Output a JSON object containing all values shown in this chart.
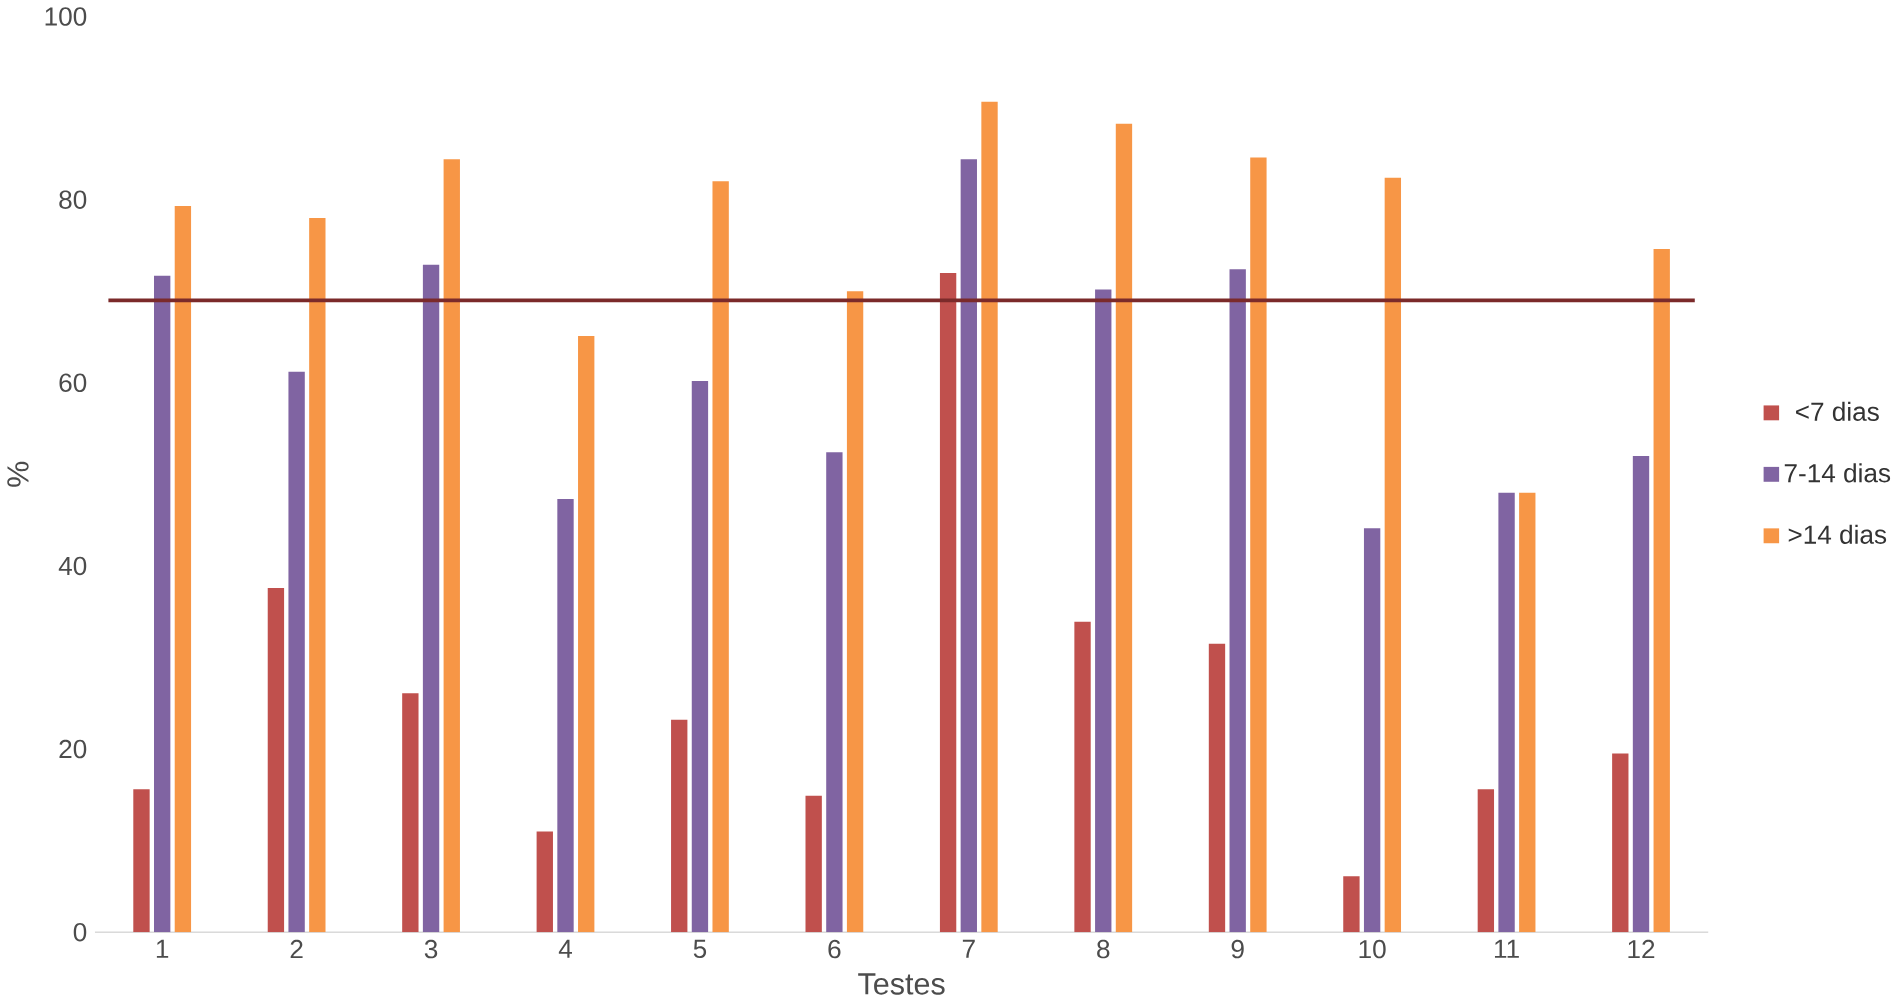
{
  "chart_data": {
    "type": "bar",
    "xlabel": "Testes",
    "ylabel": "%",
    "categories": [
      "1",
      "2",
      "3",
      "4",
      "5",
      "6",
      "7",
      "8",
      "9",
      "10",
      "11",
      "12"
    ],
    "series": [
      {
        "name": "<7 dias",
        "color": "#c0504d",
        "values": [
          15.6,
          37.6,
          26.1,
          11.0,
          23.2,
          14.9,
          72.0,
          33.9,
          31.5,
          6.1,
          15.6,
          19.5
        ]
      },
      {
        "name": "7-14 dias",
        "color": "#8064a2",
        "values": [
          71.7,
          61.2,
          72.9,
          47.3,
          60.2,
          52.4,
          84.4,
          70.2,
          72.4,
          44.1,
          48.0,
          52.0
        ]
      },
      {
        "name": ">14 dias",
        "color": "#f79646",
        "values": [
          79.3,
          78.0,
          84.4,
          65.1,
          82.0,
          70.0,
          90.7,
          88.3,
          84.6,
          82.4,
          48.0,
          74.6
        ]
      }
    ],
    "ylim": [
      0,
      100
    ],
    "yticks": [
      0,
      20,
      40,
      60,
      80,
      100
    ],
    "ref_lines": [
      {
        "axis": "y",
        "value": 69,
        "color": "#7b2a2a"
      }
    ],
    "legend": "right",
    "grid": false
  }
}
